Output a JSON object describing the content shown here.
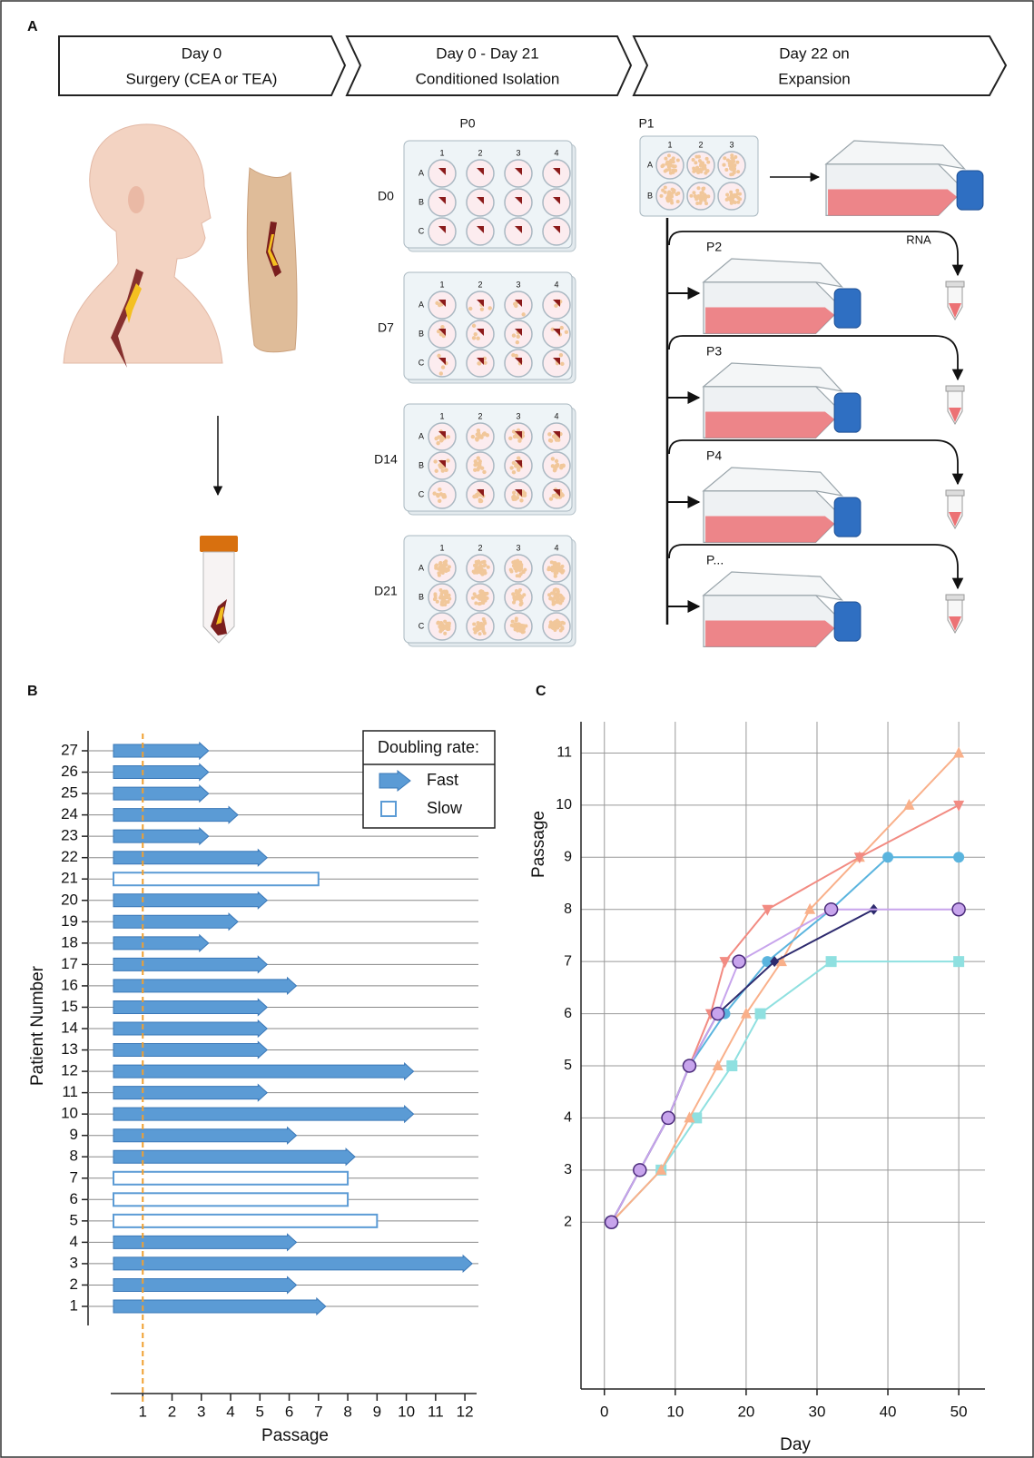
{
  "panel_labels": [
    "A",
    "B",
    "C"
  ],
  "workflow": {
    "steps": [
      [
        "Day 0",
        "Surgery (CEA or TEA)"
      ],
      [
        "Day 0 - Day 21",
        "Conditioned Isolation"
      ],
      [
        "Day 22 on",
        "Expansion"
      ]
    ],
    "plate_label": "P0",
    "plate_days": [
      "D0",
      "D7",
      "D14",
      "D21"
    ],
    "plate_rows": [
      "A",
      "B",
      "C"
    ],
    "plate_cols": [
      "1",
      "2",
      "3",
      "4"
    ],
    "p1_label": "P1",
    "p1_rows": [
      "A",
      "B"
    ],
    "p1_cols": [
      "1",
      "2",
      "3"
    ],
    "passages": [
      "P2",
      "P3",
      "P4",
      "P..."
    ],
    "rna_label": "RNA"
  },
  "chart_data": [
    {
      "type": "bar",
      "orientation": "horizontal",
      "categories": [
        "1",
        "2",
        "3",
        "4",
        "5",
        "6",
        "7",
        "8",
        "9",
        "10",
        "11",
        "12",
        "13",
        "14",
        "15",
        "16",
        "17",
        "18",
        "19",
        "20",
        "21",
        "22",
        "23",
        "24",
        "25",
        "26",
        "27"
      ],
      "series": [
        {
          "name": "Fast",
          "color": "#5b9bd5",
          "filled": true,
          "values": [
            7,
            6,
            12,
            6,
            null,
            null,
            null,
            8,
            6,
            10,
            5,
            10,
            5,
            5,
            5,
            6,
            5,
            3,
            4,
            5,
            null,
            5,
            3,
            4,
            3,
            3,
            3
          ]
        },
        {
          "name": "Slow",
          "color": "#5b9bd5",
          "filled": false,
          "values": [
            null,
            null,
            null,
            null,
            9,
            8,
            8,
            null,
            null,
            null,
            null,
            null,
            null,
            null,
            null,
            null,
            null,
            null,
            null,
            null,
            7,
            null,
            null,
            null,
            null,
            null,
            null
          ]
        }
      ],
      "legend_title": "Doubling rate:",
      "legend": "top-right",
      "xlabel": "Passage",
      "ylabel": "Patient Number",
      "xlim": [
        0,
        12.4
      ],
      "xticks": [
        1,
        2,
        3,
        4,
        5,
        6,
        7,
        8,
        9,
        10,
        11,
        12
      ],
      "reference_x": 1,
      "reference_color": "#f0a030"
    },
    {
      "type": "line",
      "xlabel": "Day",
      "ylabel": "Passage",
      "xlim": [
        -3.3,
        53.7
      ],
      "ylim": [
        -1.2,
        11.6
      ],
      "xticks": [
        0,
        10,
        20,
        30,
        40,
        50
      ],
      "yticks": [
        2,
        3,
        4,
        5,
        6,
        7,
        8,
        9,
        10,
        11
      ],
      "grid": true,
      "series": [
        {
          "color": "#8fe0e0",
          "marker": "square",
          "x": [
            1,
            8,
            13,
            18,
            22,
            32,
            50
          ],
          "values": [
            2,
            3,
            4,
            5,
            6,
            7,
            7
          ]
        },
        {
          "color": "#f9b08a",
          "marker": "triangle-up",
          "x": [
            1,
            8,
            12,
            16,
            20,
            25,
            29,
            36,
            43,
            50
          ],
          "values": [
            2,
            3,
            4,
            5,
            6,
            7,
            8,
            9,
            10,
            11
          ]
        },
        {
          "color": "#f28b82",
          "marker": "triangle-down",
          "x": [
            1,
            5,
            9,
            12,
            15,
            17,
            23,
            36,
            50
          ],
          "values": [
            2,
            3,
            4,
            5,
            6,
            7,
            8,
            9,
            10
          ]
        },
        {
          "color": "#5ab4de",
          "marker": "circle",
          "x": [
            1,
            5,
            9,
            12,
            17,
            23,
            32,
            40,
            50
          ],
          "values": [
            2,
            3,
            4,
            5,
            6,
            7,
            8,
            9,
            9
          ]
        },
        {
          "color": "#2d2a6e",
          "marker": "diamond",
          "x": [
            1,
            5,
            9,
            12,
            16,
            24,
            38
          ],
          "values": [
            2,
            3,
            4,
            5,
            6,
            7,
            8
          ]
        },
        {
          "color": "#c7a4ec",
          "marker": "circle-large",
          "x": [
            1,
            5,
            9,
            12,
            16,
            19,
            32,
            50
          ],
          "values": [
            2,
            3,
            4,
            5,
            6,
            7,
            8,
            8
          ]
        }
      ]
    }
  ]
}
